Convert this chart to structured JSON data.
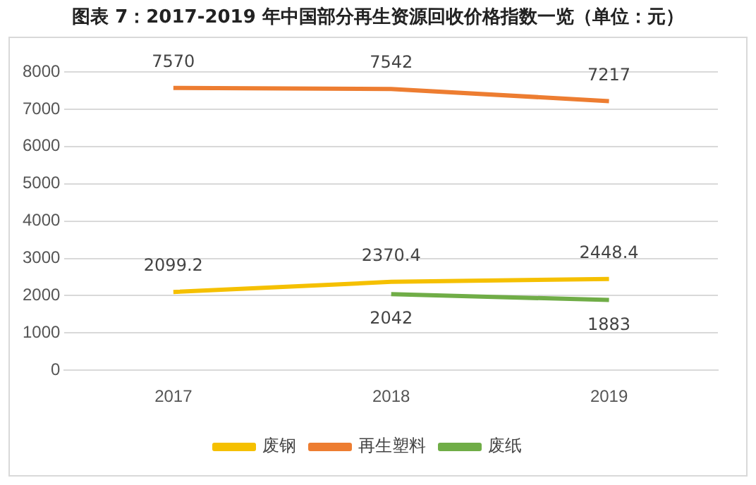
{
  "chart_data": {
    "type": "line",
    "title": "图表 7：2017-2019 年中国部分再生资源回收价格指数一览（单位：元）",
    "categories": [
      "2017",
      "2018",
      "2019"
    ],
    "series": [
      {
        "name": "废钢",
        "color": "#f5c000",
        "values": [
          2099.2,
          2370.4,
          2448.4
        ]
      },
      {
        "name": "再生塑料",
        "color": "#ed7d31",
        "values": [
          7570,
          7542,
          7217
        ]
      },
      {
        "name": "废纸",
        "color": "#70ad47",
        "values": [
          null,
          2042,
          1883
        ]
      }
    ],
    "ylim": [
      0,
      8000
    ],
    "yticks": [
      0,
      1000,
      2000,
      3000,
      4000,
      5000,
      6000,
      7000,
      8000
    ],
    "grid": "y",
    "legend": "bottom",
    "data_labels": true,
    "marker": "none",
    "line_style": "solid"
  }
}
